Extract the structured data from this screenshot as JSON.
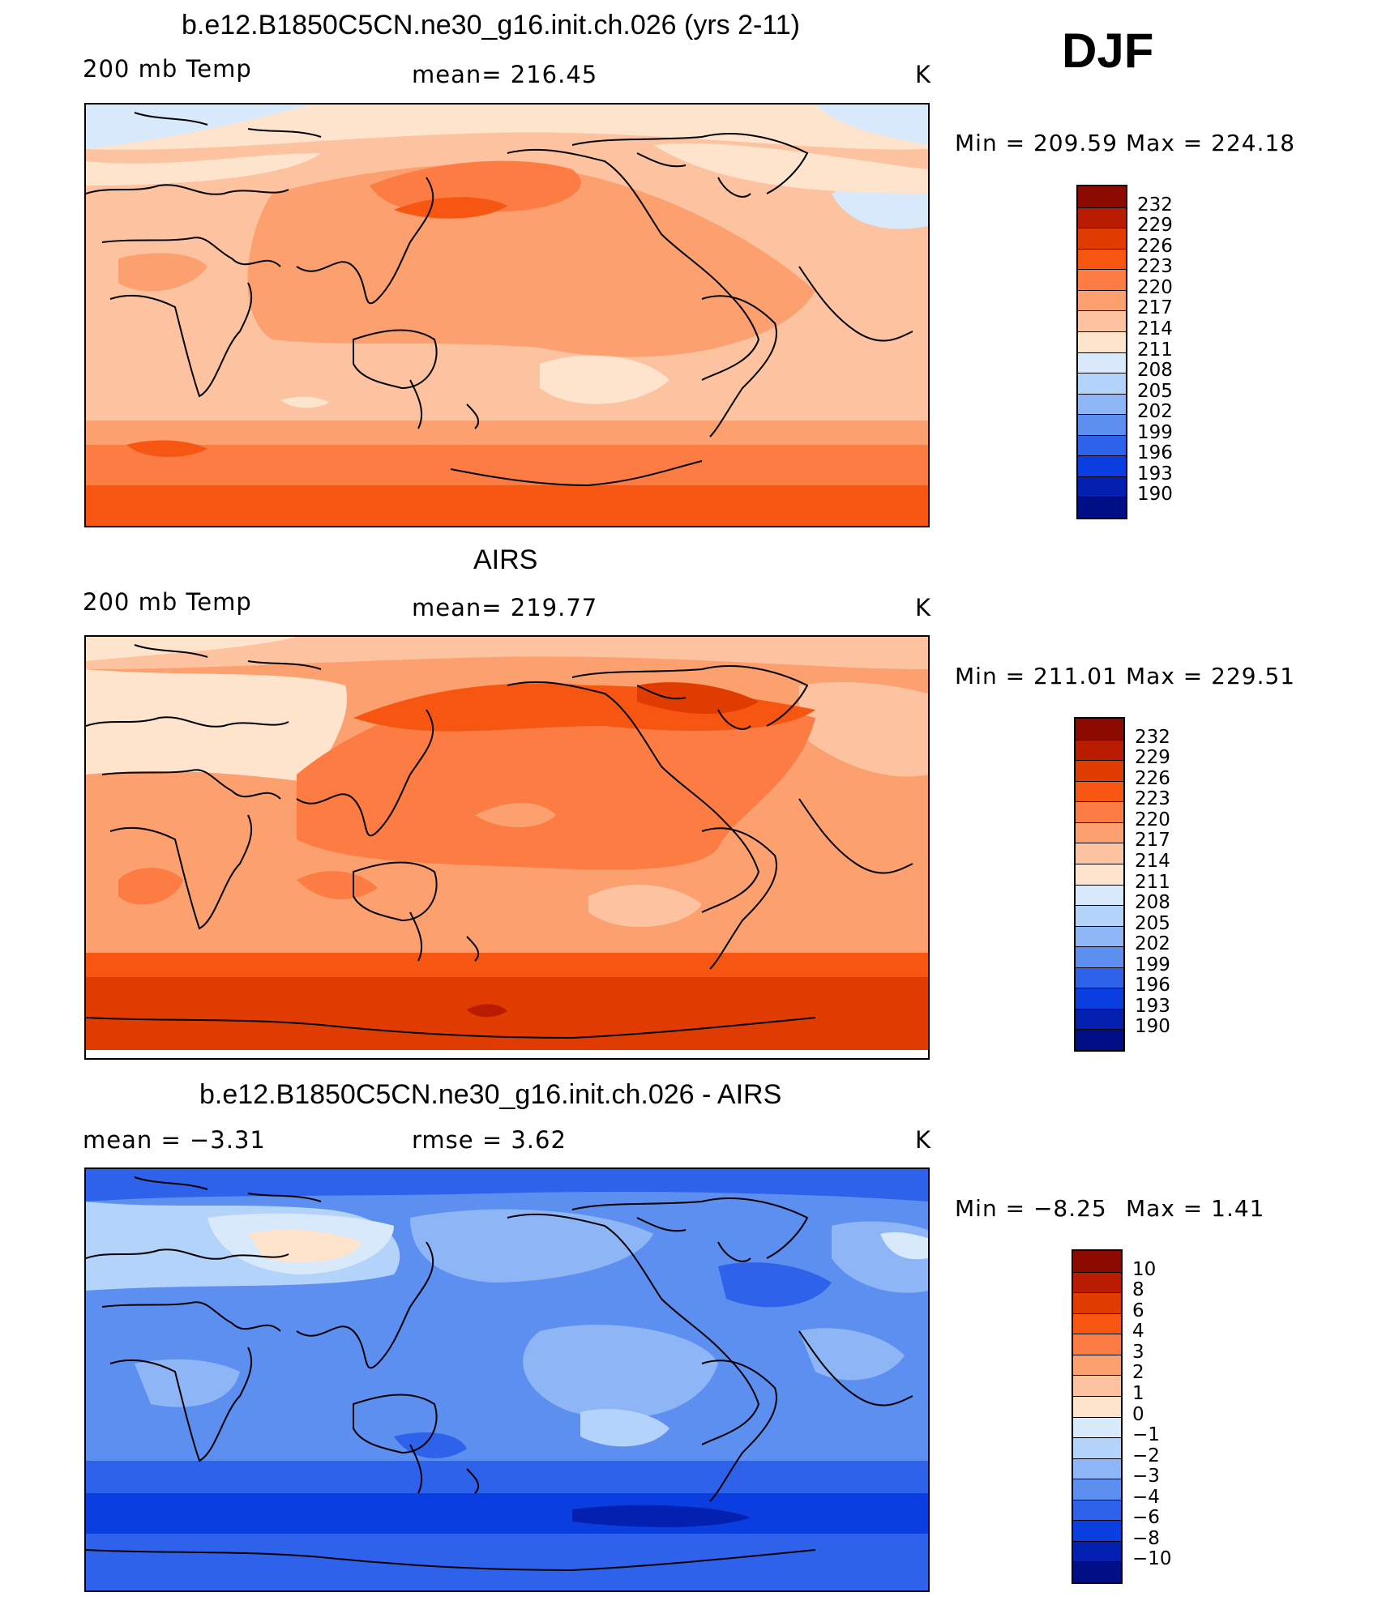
{
  "season": "DJF",
  "chart_data": [
    {
      "type": "heatmap",
      "title": "b.e12.B1850C5CN.ne30_g16.init.ch.026 (yrs 2-11)",
      "left_label": "200 mb Temp",
      "center_label": "mean=  216.45",
      "units": "K",
      "min_label": "Min  =  209.59",
      "max_label": "Max  =  224.18",
      "min": 209.59,
      "max": 224.18,
      "mean": 216.45,
      "colorbar": {
        "levels": [
          "232",
          "229",
          "226",
          "223",
          "220",
          "217",
          "214",
          "211",
          "208",
          "205",
          "202",
          "199",
          "196",
          "193",
          "190"
        ],
        "colors": [
          "#8c0a00",
          "#b91c00",
          "#e03b00",
          "#f75512",
          "#fc7c43",
          "#fca070",
          "#fdc3a0",
          "#fee4cd",
          "#d7e9fb",
          "#b4d3fa",
          "#8eb6f6",
          "#5c8ff0",
          "#2f62eb",
          "#0b3ee0",
          "#0420b0",
          "#000f86"
        ]
      }
    },
    {
      "type": "heatmap",
      "title": "AIRS",
      "left_label": "200 mb Temp",
      "center_label": "mean=  219.77",
      "units": "K",
      "min_label": "Min  =  211.01",
      "max_label": "Max  =  229.51",
      "min": 211.01,
      "max": 229.51,
      "mean": 219.77,
      "colorbar": {
        "levels": [
          "232",
          "229",
          "226",
          "223",
          "220",
          "217",
          "214",
          "211",
          "208",
          "205",
          "202",
          "199",
          "196",
          "193",
          "190"
        ],
        "colors": [
          "#8c0a00",
          "#b91c00",
          "#e03b00",
          "#f75512",
          "#fc7c43",
          "#fca070",
          "#fdc3a0",
          "#fee4cd",
          "#d7e9fb",
          "#b4d3fa",
          "#8eb6f6",
          "#5c8ff0",
          "#2f62eb",
          "#0b3ee0",
          "#0420b0",
          "#000f86"
        ]
      }
    },
    {
      "type": "heatmap",
      "title": "b.e12.B1850C5CN.ne30_g16.init.ch.026 - AIRS",
      "left_label": "mean  =    −3.31",
      "center_label": "rmse  =     3.62",
      "units": "K",
      "min_label": "Min  =    −8.25",
      "max_label": "Max  =     1.41",
      "min": -8.25,
      "max": 1.41,
      "mean": -3.31,
      "rmse": 3.62,
      "colorbar": {
        "levels": [
          "10",
          "8",
          "6",
          "4",
          "3",
          "2",
          "1",
          "0",
          "−1",
          "−2",
          "−3",
          "−4",
          "−6",
          "−8",
          "−10"
        ],
        "colors": [
          "#8c0a00",
          "#b91c00",
          "#e03b00",
          "#f75512",
          "#fc7c43",
          "#fca070",
          "#fdc3a0",
          "#fee4cd",
          "#d7e9fb",
          "#b4d3fa",
          "#8eb6f6",
          "#5c8ff0",
          "#2f62eb",
          "#0b3ee0",
          "#0420b0",
          "#000f86"
        ]
      }
    }
  ]
}
